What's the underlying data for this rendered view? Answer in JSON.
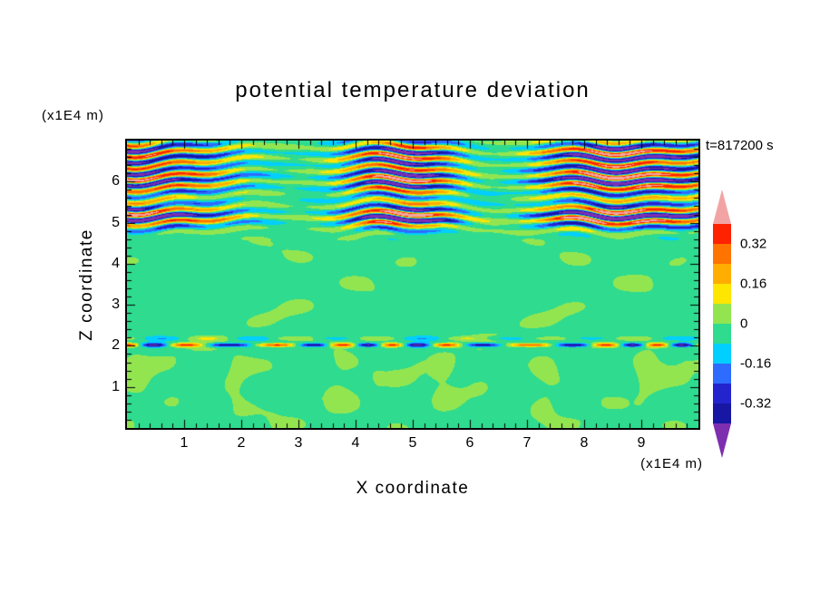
{
  "title": "potential temperature deviation",
  "timestamp_label": "t=817200 s",
  "axes": {
    "x": {
      "label": "X coordinate",
      "unit_label": "(x1E4 m)"
    },
    "z": {
      "label": "Z coordinate",
      "unit_label": "(x1E4 m)"
    }
  },
  "colorbar": {
    "labels": [
      {
        "text": "0.32",
        "value": 0.32
      },
      {
        "text": "0.16",
        "value": 0.16
      },
      {
        "text": "0",
        "value": 0
      },
      {
        "text": "-0.16",
        "value": -0.16
      },
      {
        "text": "-0.32",
        "value": -0.32
      }
    ]
  },
  "chart_data": {
    "type": "heatmap",
    "title": "potential temperature deviation",
    "xlabel": "X coordinate (x1E4 m)",
    "ylabel": "Z coordinate (x1E4 m)",
    "time_annotation": "t=817200 s",
    "x_range": [
      0,
      10
    ],
    "z_range": [
      0,
      7
    ],
    "x_major_ticks": [
      1,
      2,
      3,
      4,
      5,
      6,
      7,
      8,
      9
    ],
    "z_major_ticks": [
      1,
      2,
      3,
      4,
      5,
      6
    ],
    "minor_tick_interval": 0.2,
    "contour_levels": [
      -0.4,
      -0.32,
      -0.24,
      -0.16,
      -0.08,
      0,
      0.08,
      0.16,
      0.24,
      0.32,
      0.4
    ],
    "palette": [
      "#7E2FB0",
      "#1717A3",
      "#2424CE",
      "#2E6BFF",
      "#00CFFF",
      "#2EDB8F",
      "#93E550",
      "#FFE600",
      "#FFAD00",
      "#FF7300",
      "#FF2200",
      "#F2A4A4"
    ],
    "field_summary": "Potential temperature deviation field: near-zero (slightly negative, green) through most of the domain with light-green positive patches; a strongly turbulent layer of alternating warm (yellow/orange/red, up to >0.4) and cold (cyan/blue/navy, down to <-0.4) streaks between z=4.8 and z=7; a thin disturbed shear line at z=2; and weak convective plumes (0 to 0.08) below z=2.2.",
    "field_model": {
      "base_value": -0.03,
      "patch_amplitude": 0.05,
      "turbulent_band": {
        "amplitude": 0.55,
        "vertical_wavelength": 0.28,
        "z_centers": [
          5.15,
          6.05,
          6.72
        ],
        "z_widths": [
          0.3,
          0.42,
          0.3
        ],
        "weights": [
          1.1,
          1.0,
          0.85
        ]
      },
      "shear_line": {
        "z_center": 2.02,
        "z_width": 0.045,
        "amplitude": 0.38
      },
      "secondary_line": {
        "z_center": 2.18,
        "z_width": 0.05,
        "amplitude": 0.1
      },
      "convection": {
        "amplitude": 0.055,
        "z_top": 2.25
      }
    }
  }
}
